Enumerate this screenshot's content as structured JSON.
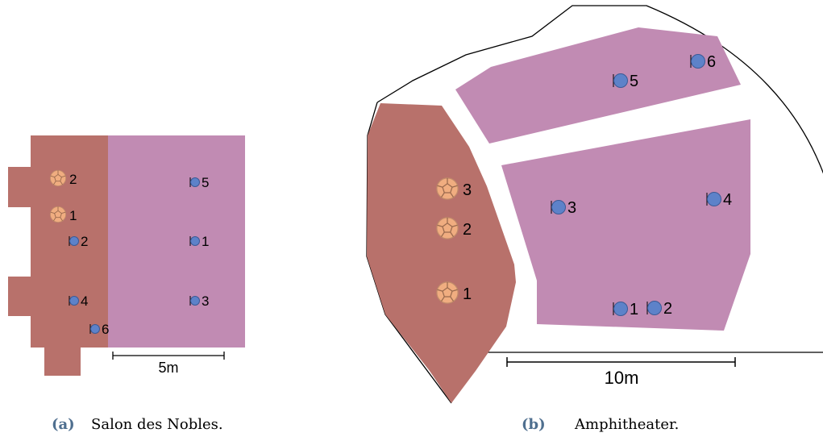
{
  "colors": {
    "stage": "#b8716b",
    "audience": "#c18bb3",
    "speaker_fill": "#f0ad80",
    "mic_fill": "#5d82c9",
    "caption_letter": "#4f6f8f"
  },
  "salon": {
    "caption_letter": "(a)",
    "caption_text": "Salon des Nobles.",
    "scale_label": "5m",
    "speakers": [
      "2",
      "1"
    ],
    "mics": [
      "5",
      "2",
      "1",
      "4",
      "3",
      "6"
    ]
  },
  "amphi": {
    "caption_letter": "(b)",
    "caption_text": "Amphitheater.",
    "scale_label": "10m",
    "speakers": [
      "3",
      "2",
      "1"
    ],
    "mics": [
      "6",
      "5",
      "3",
      "4",
      "1",
      "2"
    ]
  }
}
